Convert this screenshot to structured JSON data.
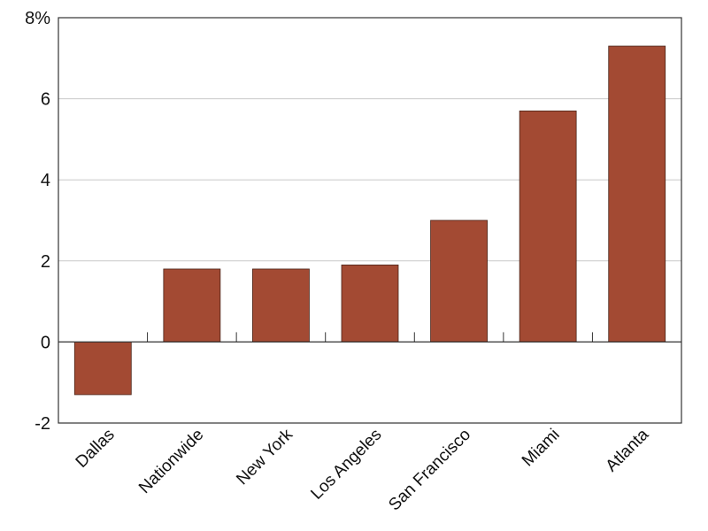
{
  "chart_data": {
    "type": "bar",
    "title": "",
    "xlabel": "",
    "ylabel": "",
    "categories": [
      "Dallas",
      "Nationwide",
      "New York",
      "Los Angeles",
      "San Francisco",
      "Miami",
      "Atlanta"
    ],
    "values": [
      -1.3,
      1.8,
      1.8,
      1.9,
      3.0,
      5.7,
      7.3
    ],
    "ylim": [
      -2,
      8
    ],
    "yticks": [
      -2,
      0,
      2,
      4,
      6,
      8
    ],
    "ytick_labels": [
      "-2",
      "0",
      "2",
      "4",
      "6",
      "8%"
    ],
    "grid": true,
    "colors": {
      "bar": "#a34a33",
      "bar_stroke": "#4a2418",
      "grid": "#c8c8c8",
      "axis": "#333333"
    }
  }
}
